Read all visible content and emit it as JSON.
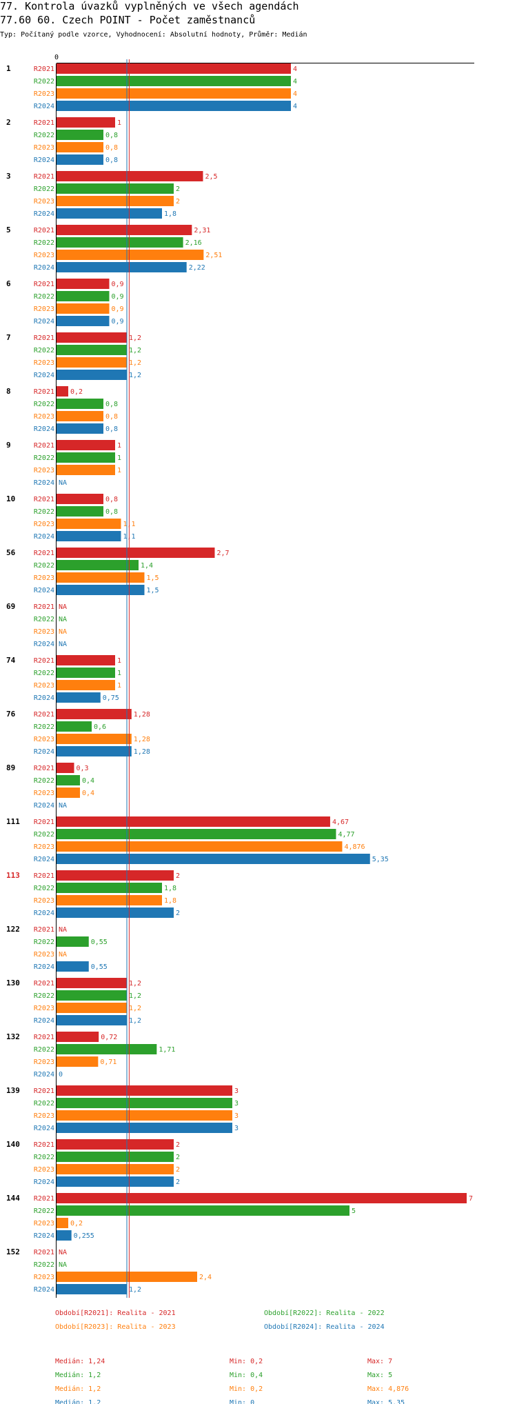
{
  "header": {
    "title": "77. Kontrola úvazků vyplněných ve všech agendách",
    "subtitle": "77.60 60. Czech POINT - Počet zaměstnanců",
    "info": "Typ: Počítaný podle vzorce, Vyhodnocení: Absolutní hodnoty, Průměr: Medián"
  },
  "colors": {
    "R2021": "#d62728",
    "R2022": "#2ca02c",
    "R2023": "#ff7f0e",
    "R2024": "#1f77b4",
    "ref_red": "#d62728",
    "ref_blue": "#1f77b4"
  },
  "chart_data": {
    "type": "bar",
    "orientation": "horizontal",
    "axis_zero_label": "0",
    "xlim": [
      0,
      7.2
    ],
    "series_names": [
      "R2021",
      "R2022",
      "R2023",
      "R2024"
    ],
    "reference_lines": [
      1.2,
      1.24
    ],
    "categories": [
      {
        "label": "1",
        "highlight": false,
        "values": [
          4,
          4,
          4,
          4
        ],
        "labels": [
          "4",
          "4",
          "4",
          "4"
        ]
      },
      {
        "label": "2",
        "highlight": false,
        "values": [
          1,
          0.8,
          0.8,
          0.8
        ],
        "labels": [
          "1",
          "0,8",
          "0,8",
          "0,8"
        ]
      },
      {
        "label": "3",
        "highlight": false,
        "values": [
          2.5,
          2,
          2,
          1.8
        ],
        "labels": [
          "2,5",
          "2",
          "2",
          "1,8"
        ]
      },
      {
        "label": "5",
        "highlight": false,
        "values": [
          2.31,
          2.16,
          2.51,
          2.22
        ],
        "labels": [
          "2,31",
          "2,16",
          "2,51",
          "2,22"
        ]
      },
      {
        "label": "6",
        "highlight": false,
        "values": [
          0.9,
          0.9,
          0.9,
          0.9
        ],
        "labels": [
          "0,9",
          "0,9",
          "0,9",
          "0,9"
        ]
      },
      {
        "label": "7",
        "highlight": false,
        "values": [
          1.2,
          1.2,
          1.2,
          1.2
        ],
        "labels": [
          "1,2",
          "1,2",
          "1,2",
          "1,2"
        ]
      },
      {
        "label": "8",
        "highlight": false,
        "values": [
          0.2,
          0.8,
          0.8,
          0.8
        ],
        "labels": [
          "0,2",
          "0,8",
          "0,8",
          "0,8"
        ]
      },
      {
        "label": "9",
        "highlight": false,
        "values": [
          1,
          1,
          1,
          null
        ],
        "labels": [
          "1",
          "1",
          "1",
          "NA"
        ]
      },
      {
        "label": "10",
        "highlight": false,
        "values": [
          0.8,
          0.8,
          1.1,
          1.1
        ],
        "labels": [
          "0,8",
          "0,8",
          "1,1",
          "1,1"
        ]
      },
      {
        "label": "56",
        "highlight": false,
        "values": [
          2.7,
          1.4,
          1.5,
          1.5
        ],
        "labels": [
          "2,7",
          "1,4",
          "1,5",
          "1,5"
        ]
      },
      {
        "label": "69",
        "highlight": false,
        "values": [
          null,
          null,
          null,
          null
        ],
        "labels": [
          "NA",
          "NA",
          "NA",
          "NA"
        ]
      },
      {
        "label": "74",
        "highlight": false,
        "values": [
          1,
          1,
          1,
          0.75
        ],
        "labels": [
          "1",
          "1",
          "1",
          "0,75"
        ]
      },
      {
        "label": "76",
        "highlight": false,
        "values": [
          1.28,
          0.6,
          1.28,
          1.28
        ],
        "labels": [
          "1,28",
          "0,6",
          "1,28",
          "1,28"
        ]
      },
      {
        "label": "89",
        "highlight": false,
        "values": [
          0.3,
          0.4,
          0.4,
          null
        ],
        "labels": [
          "0,3",
          "0,4",
          "0,4",
          "NA"
        ]
      },
      {
        "label": "111",
        "highlight": false,
        "values": [
          4.67,
          4.77,
          4.876,
          5.35
        ],
        "labels": [
          "4,67",
          "4,77",
          "4,876",
          "5,35"
        ]
      },
      {
        "label": "113",
        "highlight": true,
        "values": [
          2,
          1.8,
          1.8,
          2
        ],
        "labels": [
          "2",
          "1,8",
          "1,8",
          "2"
        ]
      },
      {
        "label": "122",
        "highlight": false,
        "values": [
          null,
          0.55,
          null,
          0.55
        ],
        "labels": [
          "NA",
          "0,55",
          "NA",
          "0,55"
        ]
      },
      {
        "label": "130",
        "highlight": false,
        "values": [
          1.2,
          1.2,
          1.2,
          1.2
        ],
        "labels": [
          "1,2",
          "1,2",
          "1,2",
          "1,2"
        ]
      },
      {
        "label": "132",
        "highlight": false,
        "values": [
          0.72,
          1.71,
          0.71,
          0
        ],
        "labels": [
          "0,72",
          "1,71",
          "0,71",
          "0"
        ]
      },
      {
        "label": "139",
        "highlight": false,
        "values": [
          3,
          3,
          3,
          3
        ],
        "labels": [
          "3",
          "3",
          "3",
          "3"
        ]
      },
      {
        "label": "140",
        "highlight": false,
        "values": [
          2,
          2,
          2,
          2
        ],
        "labels": [
          "2",
          "2",
          "2",
          "2"
        ]
      },
      {
        "label": "144",
        "highlight": false,
        "values": [
          7,
          5,
          0.2,
          0.255
        ],
        "labels": [
          "7",
          "5",
          "0,2",
          "0,255"
        ]
      },
      {
        "label": "152",
        "highlight": false,
        "values": [
          null,
          null,
          2.4,
          1.2
        ],
        "labels": [
          "NA",
          "NA",
          "2,4",
          "1,2"
        ]
      }
    ],
    "legend": [
      "Období[R2021]: Realita - 2021",
      "Období[R2022]: Realita - 2022",
      "Období[R2023]: Realita - 2023",
      "Období[R2024]: Realita - 2024"
    ],
    "stats": [
      {
        "median": "Medián: 1,24",
        "min": "Min: 0,2",
        "max": "Max: 7"
      },
      {
        "median": "Medián: 1,2",
        "min": "Min: 0,4",
        "max": "Max: 5"
      },
      {
        "median": "Medián: 1,2",
        "min": "Min: 0,2",
        "max": "Max: 4,876"
      },
      {
        "median": "Medián: 1,2",
        "min": "Min: 0",
        "max": "Max: 5,35"
      }
    ]
  }
}
